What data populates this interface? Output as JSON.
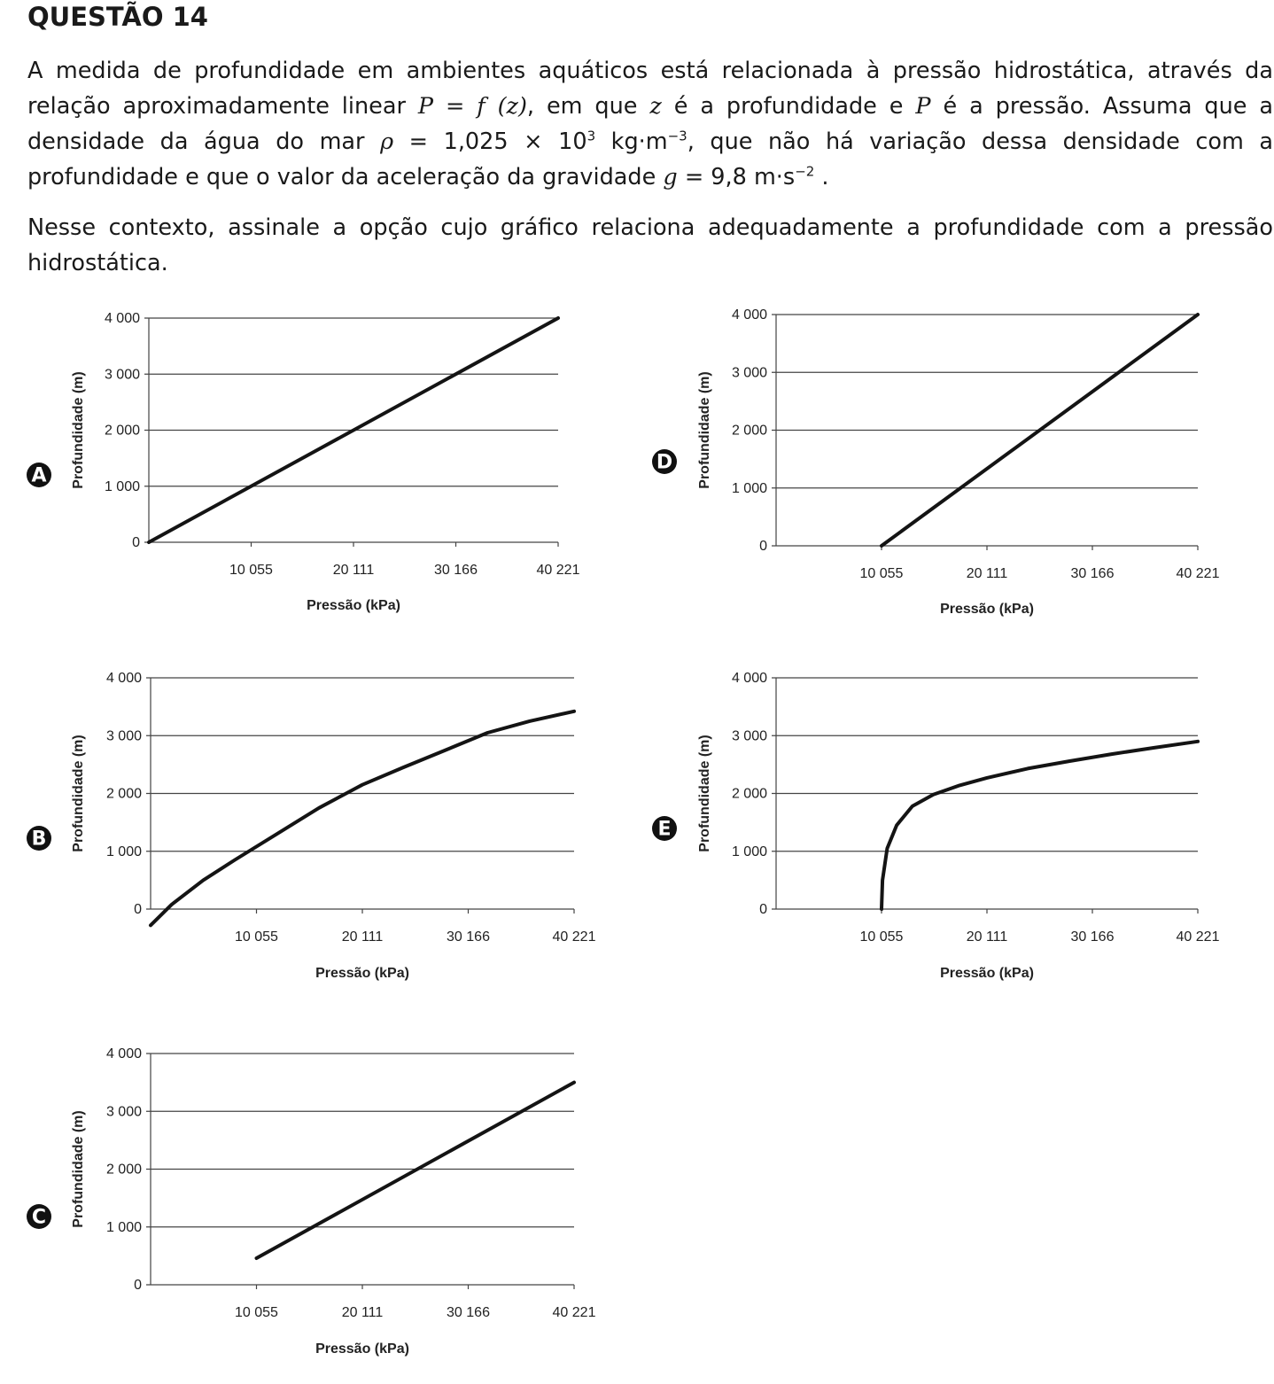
{
  "question": {
    "title": "QUESTÃO 14",
    "stem_p1": {
      "t1": "A medida de profundidade em ambientes aquáticos está relacionada à pressão hidrostática, através da relação aproximadamente linear ",
      "f1": "P = f (z)",
      "t2": ", em que ",
      "f2": "z",
      "t3": " é a profundidade e ",
      "f3": "P",
      "t4": " é a pressão. Assuma que a densidade da água do mar ",
      "f4": "ρ",
      "t5": " = 1,025 × 10",
      "sup1": "3",
      "t6": " kg·m",
      "sup2": "−3",
      "t7": ", que não há variação dessa densidade com a profundidade e que o valor da aceleração da gravidade ",
      "f5": "g",
      "t8": " = 9,8 m·s",
      "sup3": "−2",
      "t9": " ."
    },
    "stem_p2": "Nesse contexto, assinale a opção cujo gráfico relaciona adequadamente a profundidade com a pressão hidrostática."
  },
  "chart_data": [
    {
      "option": "A",
      "type": "line",
      "xlabel": "Pressão (kPa)",
      "ylabel": "Profundidade (m)",
      "x_ticks": [
        "10 055",
        "20 111",
        "30 166",
        "40 221"
      ],
      "y_ticks": [
        "0",
        "1 000",
        "2 000",
        "3 000",
        "4 000"
      ],
      "xlim": [
        0,
        40221
      ],
      "ylim": [
        0,
        4000
      ],
      "series": [
        {
          "x": [
            0,
            40221
          ],
          "y": [
            0,
            4000
          ]
        }
      ]
    },
    {
      "option": "B",
      "type": "line",
      "xlabel": "Pressão (kPa)",
      "ylabel": "Profundidade (m)",
      "x_ticks": [
        "10 055",
        "20 111",
        "30 166",
        "40 221"
      ],
      "y_ticks": [
        "0",
        "1 000",
        "2 000",
        "3 000",
        "4 000"
      ],
      "xlim": [
        0,
        40221
      ],
      "ylim": [
        0,
        4000
      ],
      "series": [
        {
          "x": [
            0,
            2000,
            5000,
            8000,
            12000,
            16000,
            20111,
            24000,
            28000,
            32000,
            36000,
            40221
          ],
          "y": [
            -280,
            80,
            500,
            850,
            1300,
            1750,
            2150,
            2450,
            2750,
            3050,
            3250,
            3420
          ]
        }
      ]
    },
    {
      "option": "C",
      "type": "line",
      "xlabel": "Pressão (kPa)",
      "ylabel": "Profundidade (m)",
      "x_ticks": [
        "10 055",
        "20 111",
        "30 166",
        "40 221"
      ],
      "y_ticks": [
        "0",
        "1 000",
        "2 000",
        "3 000",
        "4 000"
      ],
      "xlim": [
        0,
        40221
      ],
      "ylim": [
        0,
        4000
      ],
      "series": [
        {
          "x": [
            10055,
            40221
          ],
          "y": [
            460,
            3500
          ]
        }
      ]
    },
    {
      "option": "D",
      "type": "line",
      "xlabel": "Pressão (kPa)",
      "ylabel": "Profundidade (m)",
      "x_ticks": [
        "10 055",
        "20 111",
        "30 166",
        "40 221"
      ],
      "y_ticks": [
        "0",
        "1 000",
        "2 000",
        "3 000",
        "4 000"
      ],
      "xlim": [
        0,
        40221
      ],
      "ylim": [
        0,
        4000
      ],
      "series": [
        {
          "x": [
            10055,
            40221
          ],
          "y": [
            0,
            4000
          ]
        }
      ]
    },
    {
      "option": "E",
      "type": "line",
      "xlabel": "Pressão (kPa)",
      "ylabel": "Profundidade (m)",
      "x_ticks": [
        "10 055",
        "20 111",
        "30 166",
        "40 221"
      ],
      "y_ticks": [
        "0",
        "1 000",
        "2 000",
        "3 000",
        "4 000"
      ],
      "xlim": [
        0,
        40221
      ],
      "ylim": [
        0,
        4000
      ],
      "series": [
        {
          "x": [
            10055,
            10150,
            10600,
            11500,
            13000,
            15000,
            17500,
            20111,
            24000,
            28000,
            32000,
            36000,
            40221
          ],
          "y": [
            0,
            500,
            1050,
            1450,
            1780,
            1980,
            2140,
            2270,
            2430,
            2560,
            2680,
            2790,
            2900
          ]
        }
      ]
    }
  ]
}
